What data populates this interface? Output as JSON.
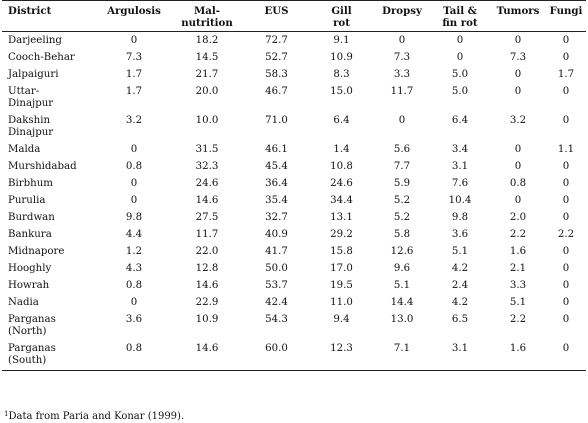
{
  "table": {
    "columns": [
      "District",
      "Argulosis",
      "Mal-\nnutrition",
      "EUS",
      "Gill\nrot",
      "Dropsy",
      "Tail &\nfin rot",
      "Tumors",
      "Fungi"
    ],
    "rows": [
      [
        "Darjeeling",
        "0",
        "18.2",
        "72.7",
        "9.1",
        "0",
        "0",
        "0",
        "0"
      ],
      [
        "Cooch-Behar",
        "7.3",
        "14.5",
        "52.7",
        "10.9",
        "7.3",
        "0",
        "7.3",
        "0"
      ],
      [
        "Jalpaiguri",
        "1.7",
        "21.7",
        "58.3",
        "8.3",
        "3.3",
        "5.0",
        "0",
        "1.7"
      ],
      [
        "Uttar-\nDinajpur",
        "1.7",
        "20.0",
        "46.7",
        "15.0",
        "11.7",
        "5.0",
        "0",
        "0"
      ],
      [
        "Dakshin\nDinajpur",
        "3.2",
        "10.0",
        "71.0",
        "6.4",
        "0",
        "6.4",
        "3.2",
        "0"
      ],
      [
        "Malda",
        "0",
        "31.5",
        "46.1",
        "1.4",
        "5.6",
        "3.4",
        "0",
        "1.1"
      ],
      [
        "Murshidabad",
        "0.8",
        "32.3",
        "45.4",
        "10.8",
        "7.7",
        "3.1",
        "0",
        "0"
      ],
      [
        "Birbhum",
        "0",
        "24.6",
        "36.4",
        "24.6",
        "5.9",
        "7.6",
        "0.8",
        "0"
      ],
      [
        "Purulia",
        "0",
        "14.6",
        "35.4",
        "34.4",
        "5.2",
        "10.4",
        "0",
        "0"
      ],
      [
        "Burdwan",
        "9.8",
        "27.5",
        "32.7",
        "13.1",
        "5.2",
        "9.8",
        "2.0",
        "0"
      ],
      [
        "Bankura",
        "4.4",
        "11.7",
        "40.9",
        "29.2",
        "5.8",
        "3.6",
        "2.2",
        "2.2"
      ],
      [
        "Midnapore",
        "1.2",
        "22.0",
        "41.7",
        "15.8",
        "12.6",
        "5.1",
        "1.6",
        "0"
      ],
      [
        "Hooghly",
        "4.3",
        "12.8",
        "50.0",
        "17.0",
        "9.6",
        "4.2",
        "2.1",
        "0"
      ],
      [
        "Howrah",
        "0.8",
        "14.6",
        "53.7",
        "19.5",
        "5.1",
        "2.4",
        "3.3",
        "0"
      ],
      [
        "Nadia",
        "0",
        "22.9",
        "42.4",
        "11.0",
        "14.4",
        "4.2",
        "5.1",
        "0"
      ],
      [
        "Parganas\n(North)",
        "3.6",
        "10.9",
        "54.3",
        "9.4",
        "13.0",
        "6.5",
        "2.2",
        "0"
      ],
      [
        "Parganas\n(South)",
        "0.8",
        "14.6",
        "60.0",
        "12.3",
        "7.1",
        "3.1",
        "1.6",
        "0"
      ]
    ]
  },
  "footnote": {
    "marker": "1",
    "text": "Data from Paria and Konar (1999)."
  }
}
